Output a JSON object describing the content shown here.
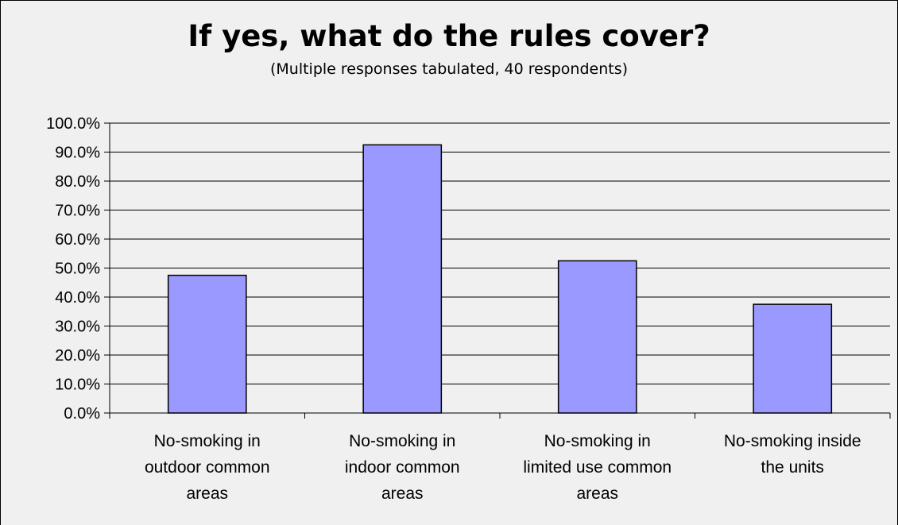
{
  "chart_data": {
    "type": "bar",
    "title": "If yes, what do the rules cover?",
    "subtitle": "(Multiple responses tabulated, 40 respondents)",
    "xlabel": "",
    "ylabel": "",
    "categories": [
      [
        "No-smoking in",
        "outdoor common",
        "areas"
      ],
      [
        "No-smoking in",
        "indoor common",
        "areas"
      ],
      [
        "No-smoking in",
        "limited use common",
        "areas"
      ],
      [
        "No-smoking inside",
        "the units"
      ]
    ],
    "values": [
      47.5,
      92.5,
      52.5,
      37.5
    ],
    "ylim": [
      0,
      100
    ],
    "yticks": [
      "0.0%",
      "10.0%",
      "20.0%",
      "30.0%",
      "40.0%",
      "50.0%",
      "60.0%",
      "70.0%",
      "80.0%",
      "90.0%",
      "100.0%"
    ],
    "grid": true,
    "legend": "none",
    "colors": {
      "bar_fill": "#9999FF",
      "bar_stroke": "#000000",
      "background": "#F0F0F0",
      "gridline": "#000000"
    }
  }
}
